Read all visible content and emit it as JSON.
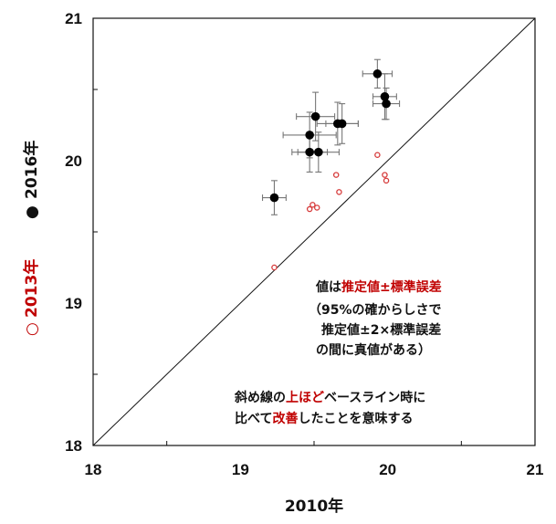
{
  "chart_data": {
    "type": "scatter",
    "xlabel": "2010年",
    "ylabel_2016": "2016年",
    "ylabel_2013": "2013年",
    "ylabel_2016_marker": "●",
    "ylabel_2013_marker": "○",
    "xlim": [
      18,
      21
    ],
    "ylim": [
      18,
      21
    ],
    "xticks": [
      "18",
      "19",
      "20",
      "21"
    ],
    "yticks": [
      "18",
      "19",
      "20",
      "21"
    ],
    "reference_line": "y = x",
    "series": [
      {
        "name": "2016年",
        "marker": "filled-circle",
        "color": "#000000",
        "points": [
          {
            "x": 19.23,
            "y": 19.74,
            "xerr": 0.08,
            "yerr": 0.12
          },
          {
            "x": 19.47,
            "y": 20.18,
            "xerr": 0.18,
            "yerr": 0.16
          },
          {
            "x": 19.47,
            "y": 20.06,
            "xerr": 0.12,
            "yerr": 0.14
          },
          {
            "x": 19.51,
            "y": 20.31,
            "xerr": 0.13,
            "yerr": 0.17
          },
          {
            "x": 19.53,
            "y": 20.06,
            "xerr": 0.14,
            "yerr": 0.14
          },
          {
            "x": 19.66,
            "y": 20.26,
            "xerr": 0.14,
            "yerr": 0.15
          },
          {
            "x": 19.69,
            "y": 20.26,
            "xerr": 0.11,
            "yerr": 0.14
          },
          {
            "x": 19.93,
            "y": 20.61,
            "xerr": 0.1,
            "yerr": 0.1
          },
          {
            "x": 19.98,
            "y": 20.45,
            "xerr": 0.08,
            "yerr": 0.16
          },
          {
            "x": 19.99,
            "y": 20.4,
            "xerr": 0.09,
            "yerr": 0.11
          }
        ]
      },
      {
        "name": "2013年",
        "marker": "open-circle",
        "color": "#d63a3a",
        "points": [
          {
            "x": 19.23,
            "y": 19.25
          },
          {
            "x": 19.47,
            "y": 19.66
          },
          {
            "x": 19.49,
            "y": 19.69
          },
          {
            "x": 19.52,
            "y": 19.67
          },
          {
            "x": 19.65,
            "y": 19.9
          },
          {
            "x": 19.67,
            "y": 19.78
          },
          {
            "x": 19.93,
            "y": 20.04
          },
          {
            "x": 19.98,
            "y": 19.9
          },
          {
            "x": 19.99,
            "y": 19.86
          }
        ]
      }
    ]
  },
  "annotations": {
    "line1_a": "値は",
    "line1_b": "推定値±標準誤差",
    "line2": "（95%の確からしさで",
    "line3": "推定値±2×標準誤差",
    "line4": "の間に真値がある）",
    "line5_a": "斜め線の",
    "line5_b": "上ほど",
    "line5_c": "ベースライン時に",
    "line6_a": "比べて",
    "line6_b": "改善",
    "line6_c": "したことを意味する"
  },
  "colors": {
    "highlight": "#c00000",
    "open_marker": "#d63a3a",
    "text": "#111111"
  }
}
